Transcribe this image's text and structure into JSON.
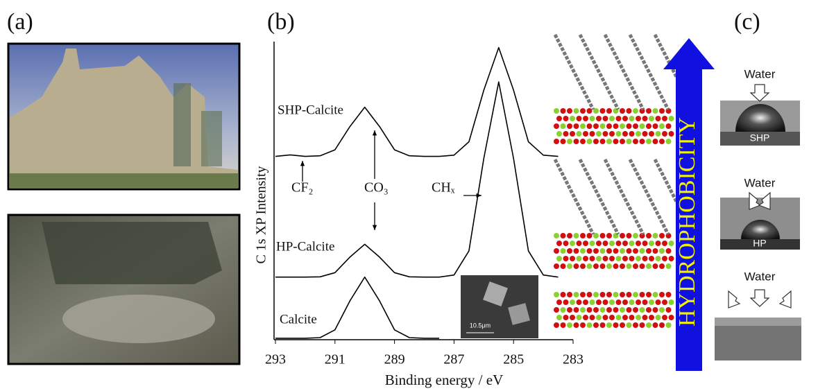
{
  "panels": {
    "a": {
      "label": "(a)"
    },
    "b": {
      "label": "(b)",
      "hydrophobicity": "HYDROPHOBICITY",
      "inset_scale": "10.5μm"
    },
    "c": {
      "label": "(c)",
      "water": [
        "Water",
        "Water",
        "Water"
      ],
      "samples": [
        "SHP",
        "HP"
      ]
    }
  },
  "chart_data": {
    "type": "line",
    "xlabel": "Binding energy / eV",
    "ylabel": "C 1s XP Intensity",
    "x": [
      293,
      292.5,
      292,
      291.5,
      291,
      290.5,
      290,
      289.5,
      289,
      288.5,
      288,
      287.5,
      287,
      286.5,
      286,
      285.5,
      285,
      284.5,
      284,
      283.5
    ],
    "xlim": [
      293,
      283
    ],
    "xticks": [
      293,
      291,
      289,
      287,
      285,
      283
    ],
    "ylim": [
      0,
      100
    ],
    "series": [
      {
        "name": "Calcite",
        "color": "#000000",
        "values": [
          0.5,
          0.5,
          0.5,
          0.7,
          3.3,
          13,
          21,
          13,
          3.3,
          0.7,
          0.5,
          0.5,
          null,
          null,
          null,
          null,
          null,
          null,
          null,
          null
        ]
      },
      {
        "name": "HP-Calcite",
        "color": "#000000",
        "values": [
          21,
          21,
          21,
          21.1,
          22.5,
          27.7,
          32,
          27.7,
          22.5,
          21.1,
          21,
          21,
          21.7,
          29.8,
          60.8,
          86.5,
          60.8,
          29.8,
          21.7,
          21
        ]
      },
      {
        "name": "SHP-Calcite",
        "color": "#000000",
        "values": [
          61.5,
          62,
          61.5,
          61.7,
          63.7,
          71.5,
          78,
          71.5,
          63.7,
          61.7,
          61.5,
          61.5,
          61.9,
          66.4,
          83.7,
          98,
          83.7,
          66.4,
          61.9,
          61.5
        ]
      }
    ],
    "annotations": [
      "CF₂",
      "CO₃",
      "CHₓ"
    ]
  }
}
